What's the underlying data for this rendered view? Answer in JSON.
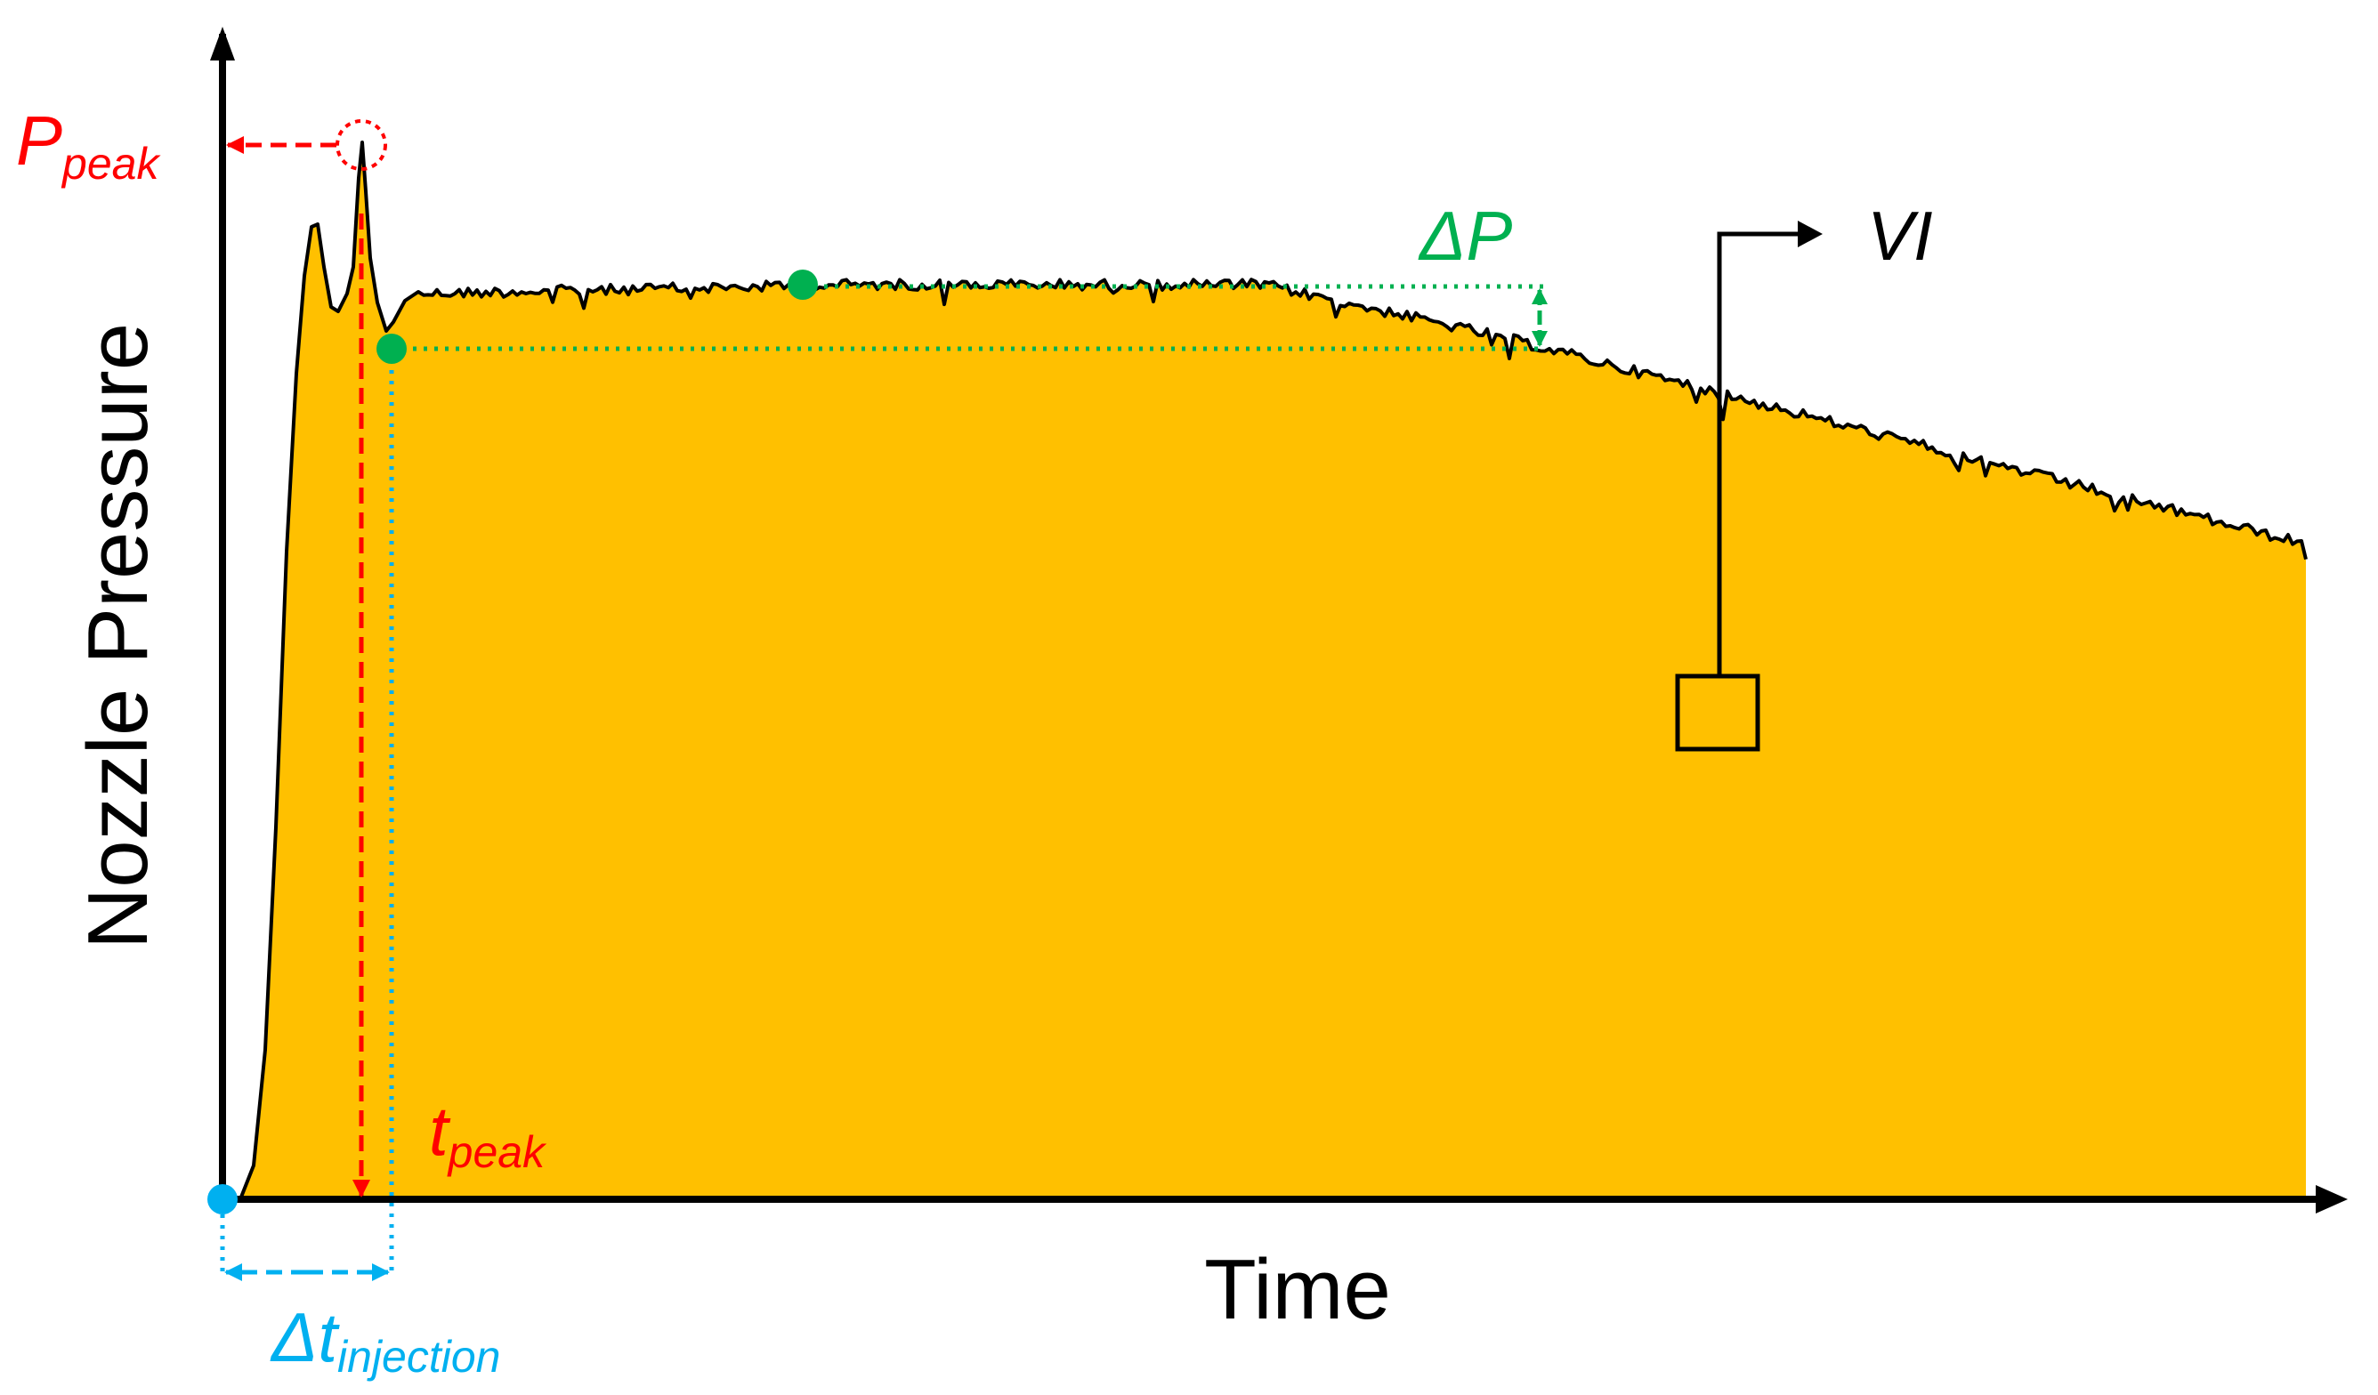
{
  "labels": {
    "y_axis": "Nozzle Pressure",
    "x_axis": "Time",
    "p_peak_main": "P",
    "p_peak_sub": "peak",
    "t_peak_main": "t",
    "t_peak_sub": "peak",
    "delta_p": "ΔP",
    "delta_t_main": "Δt",
    "delta_t_sub": "injection",
    "vi": "VI"
  },
  "colors": {
    "fill": "#FFC000",
    "curve": "#000000",
    "peak": "#FF0000",
    "delta_p": "#00B050",
    "injection": "#00B0F0",
    "axis": "#000000"
  },
  "icons": {
    "switch_box": "square-box-icon",
    "vi_arrow": "right-arrow-icon"
  }
}
